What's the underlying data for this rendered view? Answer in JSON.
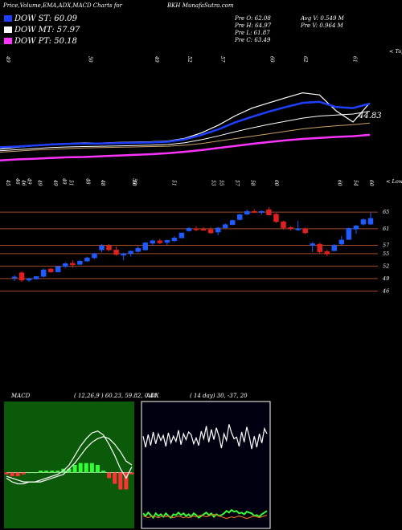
{
  "header": {
    "title": "Price,Volume,EMA,ADX,MACD Charts for",
    "symbol": "BKH",
    "site": "MunafaSutra.com",
    "prev_open": "Pre  O: 62.08",
    "prev_high": "Pre  H: 64.97",
    "prev_low": "Pre  L: 61.87",
    "prev_close": "Pre  C: 63.49",
    "avg_volume": "Avg V: 0.549  M",
    "prev_volume": "Pre  V: 0.964  M"
  },
  "legend": [
    {
      "label": "DOW ST: 60.09",
      "color": "#1f3fff"
    },
    {
      "label": "DOW MT: 57.97",
      "color": "#ffffff"
    },
    {
      "label": "DOW PT: 50.18",
      "color": "#ff33ff"
    }
  ],
  "colors": {
    "up": "#1f5bff",
    "down": "#e02020",
    "grid": "#a04a28"
  },
  "ema_panel": {
    "value_label": "44.83",
    "corner_label": "< Topw"
  },
  "candle_panel": {
    "corner_label": "< Lowes"
  },
  "macd_panel": {
    "label": "MACD",
    "params": "( 12,26,9 ) 60.23,  59.82,  0.41"
  },
  "adx_panel": {
    "label": "ADX",
    "params": "( 14  day) 30,  -37,  20"
  },
  "chart_data": [
    {
      "type": "line",
      "title": "EMA",
      "top_labels": [
        "49",
        "",
        "",
        "",
        "",
        "50",
        "",
        "",
        "",
        "49",
        "",
        "52",
        "",
        "57",
        "",
        "",
        "60",
        "",
        "62",
        "",
        "",
        "61",
        ""
      ],
      "bottom_labels": [
        "46",
        "49",
        "",
        "",
        "49",
        "",
        "48",
        "",
        "",
        "",
        "50",
        "",
        "",
        "",
        "",
        "",
        "",
        "",
        "",
        "",
        "",
        "",
        ""
      ],
      "series": [
        {
          "color": "#ffffff",
          "values": [
            46.5,
            47,
            47.4,
            47.9,
            48.1,
            48.3,
            48.2,
            48.4,
            48.5,
            48.6,
            48.8,
            49.6,
            51.2,
            53.4,
            56.1,
            58.3,
            59.8,
            61.3,
            62.7,
            62.1,
            57.5,
            54.3,
            59.8
          ]
        },
        {
          "color": "#1f3fff",
          "values": [
            47,
            47.2,
            47.5,
            47.8,
            48,
            48.1,
            48.1,
            48.2,
            48.3,
            48.4,
            48.6,
            49.3,
            50.6,
            52.2,
            54.2,
            55.8,
            57.3,
            58.6,
            59.8,
            60.1,
            58.6,
            58.3,
            59.6
          ]
        },
        {
          "color": "#ffffff",
          "values": [
            46,
            46.3,
            46.6,
            46.9,
            47.1,
            47.2,
            47.3,
            47.4,
            47.5,
            47.6,
            47.8,
            48.3,
            49.2,
            50.3,
            51.5,
            52.6,
            53.6,
            54.5,
            55.4,
            56,
            56.3,
            56.6,
            57.4
          ]
        },
        {
          "color": "#c8a068",
          "values": [
            45.6,
            45.9,
            46.2,
            46.4,
            46.6,
            46.8,
            46.9,
            47,
            47.1,
            47.2,
            47.3,
            47.6,
            48.1,
            48.8,
            49.5,
            50.2,
            50.9,
            51.6,
            52.3,
            52.8,
            53.2,
            53.5,
            54
          ]
        },
        {
          "color": "#ff33ff",
          "values": [
            43.2,
            43.5,
            43.7,
            43.9,
            44.1,
            44.2,
            44.4,
            44.6,
            44.8,
            45,
            45.3,
            45.7,
            46.2,
            46.8,
            47.4,
            48,
            48.5,
            49,
            49.4,
            49.7,
            50,
            50.2,
            50.6
          ]
        }
      ]
    },
    {
      "type": "candlestick",
      "title": "Price",
      "yticks": [
        65,
        61,
        57,
        55,
        52,
        49,
        46
      ],
      "top_labels": [
        "45",
        "",
        "46",
        "",
        "49",
        "",
        "49",
        "",
        "51",
        "",
        "",
        "",
        "48",
        "",
        "",
        "",
        "50",
        "",
        "",
        "",
        "",
        "51",
        "",
        "",
        "",
        "",
        "53",
        "55",
        "",
        "57",
        "",
        "58",
        "",
        "",
        "60",
        "",
        "",
        "",
        "",
        "",
        "",
        "",
        "60",
        "",
        "54",
        "",
        "60"
      ],
      "candles": [
        {
          "o": 49.2,
          "h": 49.8,
          "l": 48.4,
          "c": 49.4
        },
        {
          "o": 50.4,
          "h": 50.7,
          "l": 48.2,
          "c": 48.6
        },
        {
          "o": 48.6,
          "h": 49.2,
          "l": 48.2,
          "c": 49.0
        },
        {
          "o": 48.9,
          "h": 49.6,
          "l": 48.7,
          "c": 49.5
        },
        {
          "o": 49.5,
          "h": 51.4,
          "l": 49.3,
          "c": 51.1
        },
        {
          "o": 51.3,
          "h": 51.6,
          "l": 50.4,
          "c": 50.6
        },
        {
          "o": 50.6,
          "h": 52.1,
          "l": 50.5,
          "c": 51.9
        },
        {
          "o": 51.9,
          "h": 52.9,
          "l": 51.6,
          "c": 52.6
        },
        {
          "o": 52.7,
          "h": 53.4,
          "l": 51.6,
          "c": 52.3
        },
        {
          "o": 52.4,
          "h": 53.4,
          "l": 52.2,
          "c": 53.2
        },
        {
          "o": 53.2,
          "h": 54.3,
          "l": 53.0,
          "c": 54.0
        },
        {
          "o": 54.0,
          "h": 55.2,
          "l": 53.7,
          "c": 55.0
        },
        {
          "o": 55.9,
          "h": 57.3,
          "l": 55.3,
          "c": 56.9
        },
        {
          "o": 56.9,
          "h": 57.3,
          "l": 55.6,
          "c": 55.9
        },
        {
          "o": 55.9,
          "h": 56.7,
          "l": 54.5,
          "c": 54.8
        },
        {
          "o": 54.6,
          "h": 55.2,
          "l": 53.4,
          "c": 55.0
        },
        {
          "o": 55.0,
          "h": 55.8,
          "l": 54.3,
          "c": 55.6
        },
        {
          "o": 55.5,
          "h": 56.8,
          "l": 55.3,
          "c": 56.3
        },
        {
          "o": 55.9,
          "h": 57.8,
          "l": 55.7,
          "c": 57.6
        },
        {
          "o": 57.5,
          "h": 58.4,
          "l": 57.0,
          "c": 58.1
        },
        {
          "o": 58.1,
          "h": 58.6,
          "l": 57.3,
          "c": 57.6
        },
        {
          "o": 57.7,
          "h": 58.4,
          "l": 57.1,
          "c": 58.2
        },
        {
          "o": 58.1,
          "h": 59.2,
          "l": 57.8,
          "c": 58.8
        },
        {
          "o": 58.8,
          "h": 60.1,
          "l": 58.7,
          "c": 60.0
        },
        {
          "o": 60.5,
          "h": 61.4,
          "l": 60.3,
          "c": 61.1
        },
        {
          "o": 61.0,
          "h": 61.6,
          "l": 60.4,
          "c": 60.9
        },
        {
          "o": 60.9,
          "h": 61.4,
          "l": 60.6,
          "c": 60.8
        },
        {
          "o": 60.8,
          "h": 61.4,
          "l": 59.8,
          "c": 60.0
        },
        {
          "o": 60.2,
          "h": 61.4,
          "l": 59.4,
          "c": 61.2
        },
        {
          "o": 61.2,
          "h": 62.3,
          "l": 61.0,
          "c": 62.0
        },
        {
          "o": 62.0,
          "h": 63.2,
          "l": 61.8,
          "c": 63.0
        },
        {
          "o": 63.2,
          "h": 64.6,
          "l": 63.0,
          "c": 64.4
        },
        {
          "o": 64.5,
          "h": 65.6,
          "l": 64.3,
          "c": 65.2
        },
        {
          "o": 65.2,
          "h": 65.7,
          "l": 64.8,
          "c": 65.1
        },
        {
          "o": 65.1,
          "h": 65.4,
          "l": 64.4,
          "c": 65.2
        },
        {
          "o": 65.6,
          "h": 66.2,
          "l": 64.3,
          "c": 64.3
        },
        {
          "o": 64.5,
          "h": 64.8,
          "l": 62.4,
          "c": 62.7
        },
        {
          "o": 62.7,
          "h": 62.9,
          "l": 60.8,
          "c": 61.2
        },
        {
          "o": 61.3,
          "h": 61.6,
          "l": 60.6,
          "c": 61.0
        },
        {
          "o": 61.0,
          "h": 62.9,
          "l": 60.5,
          "c": 61.0
        },
        {
          "o": 61.0,
          "h": 61.3,
          "l": 59.7,
          "c": 60.0
        },
        {
          "o": 57.0,
          "h": 57.8,
          "l": 55.4,
          "c": 57.4
        },
        {
          "o": 57.3,
          "h": 57.6,
          "l": 55.1,
          "c": 55.4
        },
        {
          "o": 55.5,
          "h": 56.0,
          "l": 54.4,
          "c": 54.9
        },
        {
          "o": 55.7,
          "h": 57.3,
          "l": 55.6,
          "c": 57.0
        },
        {
          "o": 57.3,
          "h": 59.3,
          "l": 57.1,
          "c": 58.3
        },
        {
          "o": 58.4,
          "h": 61.3,
          "l": 58.3,
          "c": 61.1
        },
        {
          "o": 60.9,
          "h": 61.9,
          "l": 59.8,
          "c": 61.7
        },
        {
          "o": 62.1,
          "h": 63.5,
          "l": 61.8,
          "c": 63.2
        },
        {
          "o": 62.1,
          "h": 64.9,
          "l": 61.9,
          "c": 63.5
        }
      ]
    },
    {
      "type": "line",
      "title": "MACD",
      "series": [
        {
          "color": "#ffffff",
          "values": [
            -0.3,
            -0.5,
            -0.6,
            -0.6,
            -0.5,
            -0.5,
            -0.4,
            -0.3,
            -0.2,
            -0.1,
            0.1,
            0.4,
            0.9,
            1.4,
            1.8,
            2.1,
            2.2,
            2.0,
            1.5,
            0.9,
            0.2,
            -0.3,
            0.3
          ]
        },
        {
          "color": "#ffffff",
          "values": [
            -0.2,
            -0.3,
            -0.4,
            -0.5,
            -0.5,
            -0.5,
            -0.5,
            -0.4,
            -0.3,
            -0.2,
            -0.1,
            0.2,
            0.5,
            0.9,
            1.3,
            1.6,
            1.8,
            1.9,
            1.8,
            1.5,
            1.1,
            0.6,
            0.4
          ]
        }
      ],
      "histogram": [
        -0.1,
        -0.2,
        -0.2,
        -0.1,
        0,
        0,
        0.1,
        0.1,
        0.1,
        0.1,
        0.2,
        0.2,
        0.4,
        0.5,
        0.5,
        0.5,
        0.4,
        0.1,
        -0.3,
        -0.6,
        -0.9,
        -0.9,
        -0.1
      ]
    },
    {
      "type": "line",
      "title": "ADX",
      "series": [
        {
          "color": "#ffffff",
          "values": [
            33,
            20,
            35,
            22,
            38,
            24,
            36,
            28,
            34,
            21,
            37,
            25,
            33,
            27,
            40,
            23,
            36,
            29,
            38,
            35,
            24,
            31,
            22,
            39,
            30,
            45,
            26,
            41,
            29,
            43,
            33,
            19,
            36,
            28,
            47,
            37,
            30,
            32,
            21,
            38,
            26,
            44,
            33,
            18,
            33,
            20,
            36,
            25,
            42,
            36
          ]
        },
        {
          "color": "#33ff33",
          "values": [
            -58,
            -61,
            -57,
            -60,
            -63,
            -58,
            -61,
            -59,
            -62,
            -58,
            -61,
            -63,
            -59,
            -60,
            -57,
            -60,
            -58,
            -61,
            -59,
            -62,
            -58,
            -60,
            -63,
            -61,
            -59,
            -57,
            -60,
            -58,
            -62,
            -59,
            -61,
            -60,
            -58,
            -55,
            -57,
            -54,
            -56,
            -55,
            -58,
            -57,
            -59,
            -56,
            -57,
            -58,
            -61,
            -60,
            -62,
            -59,
            -57,
            -55
          ]
        },
        {
          "color": "#d06820",
          "values": [
            -61,
            -62,
            -63,
            -62,
            -61,
            -62,
            -63,
            -62,
            -61,
            -62,
            -61,
            -62,
            -63,
            -62,
            -61,
            -62,
            -63,
            -62,
            -63,
            -62,
            -61,
            -62,
            -61,
            -60,
            -61,
            -62,
            -61,
            -60,
            -59,
            -60,
            -61,
            -62,
            -63,
            -64,
            -63,
            -62,
            -63,
            -62,
            -61,
            -62,
            -63,
            -64,
            -63,
            -62,
            -61,
            -62,
            -63,
            -62,
            -61,
            -60
          ]
        }
      ]
    }
  ]
}
